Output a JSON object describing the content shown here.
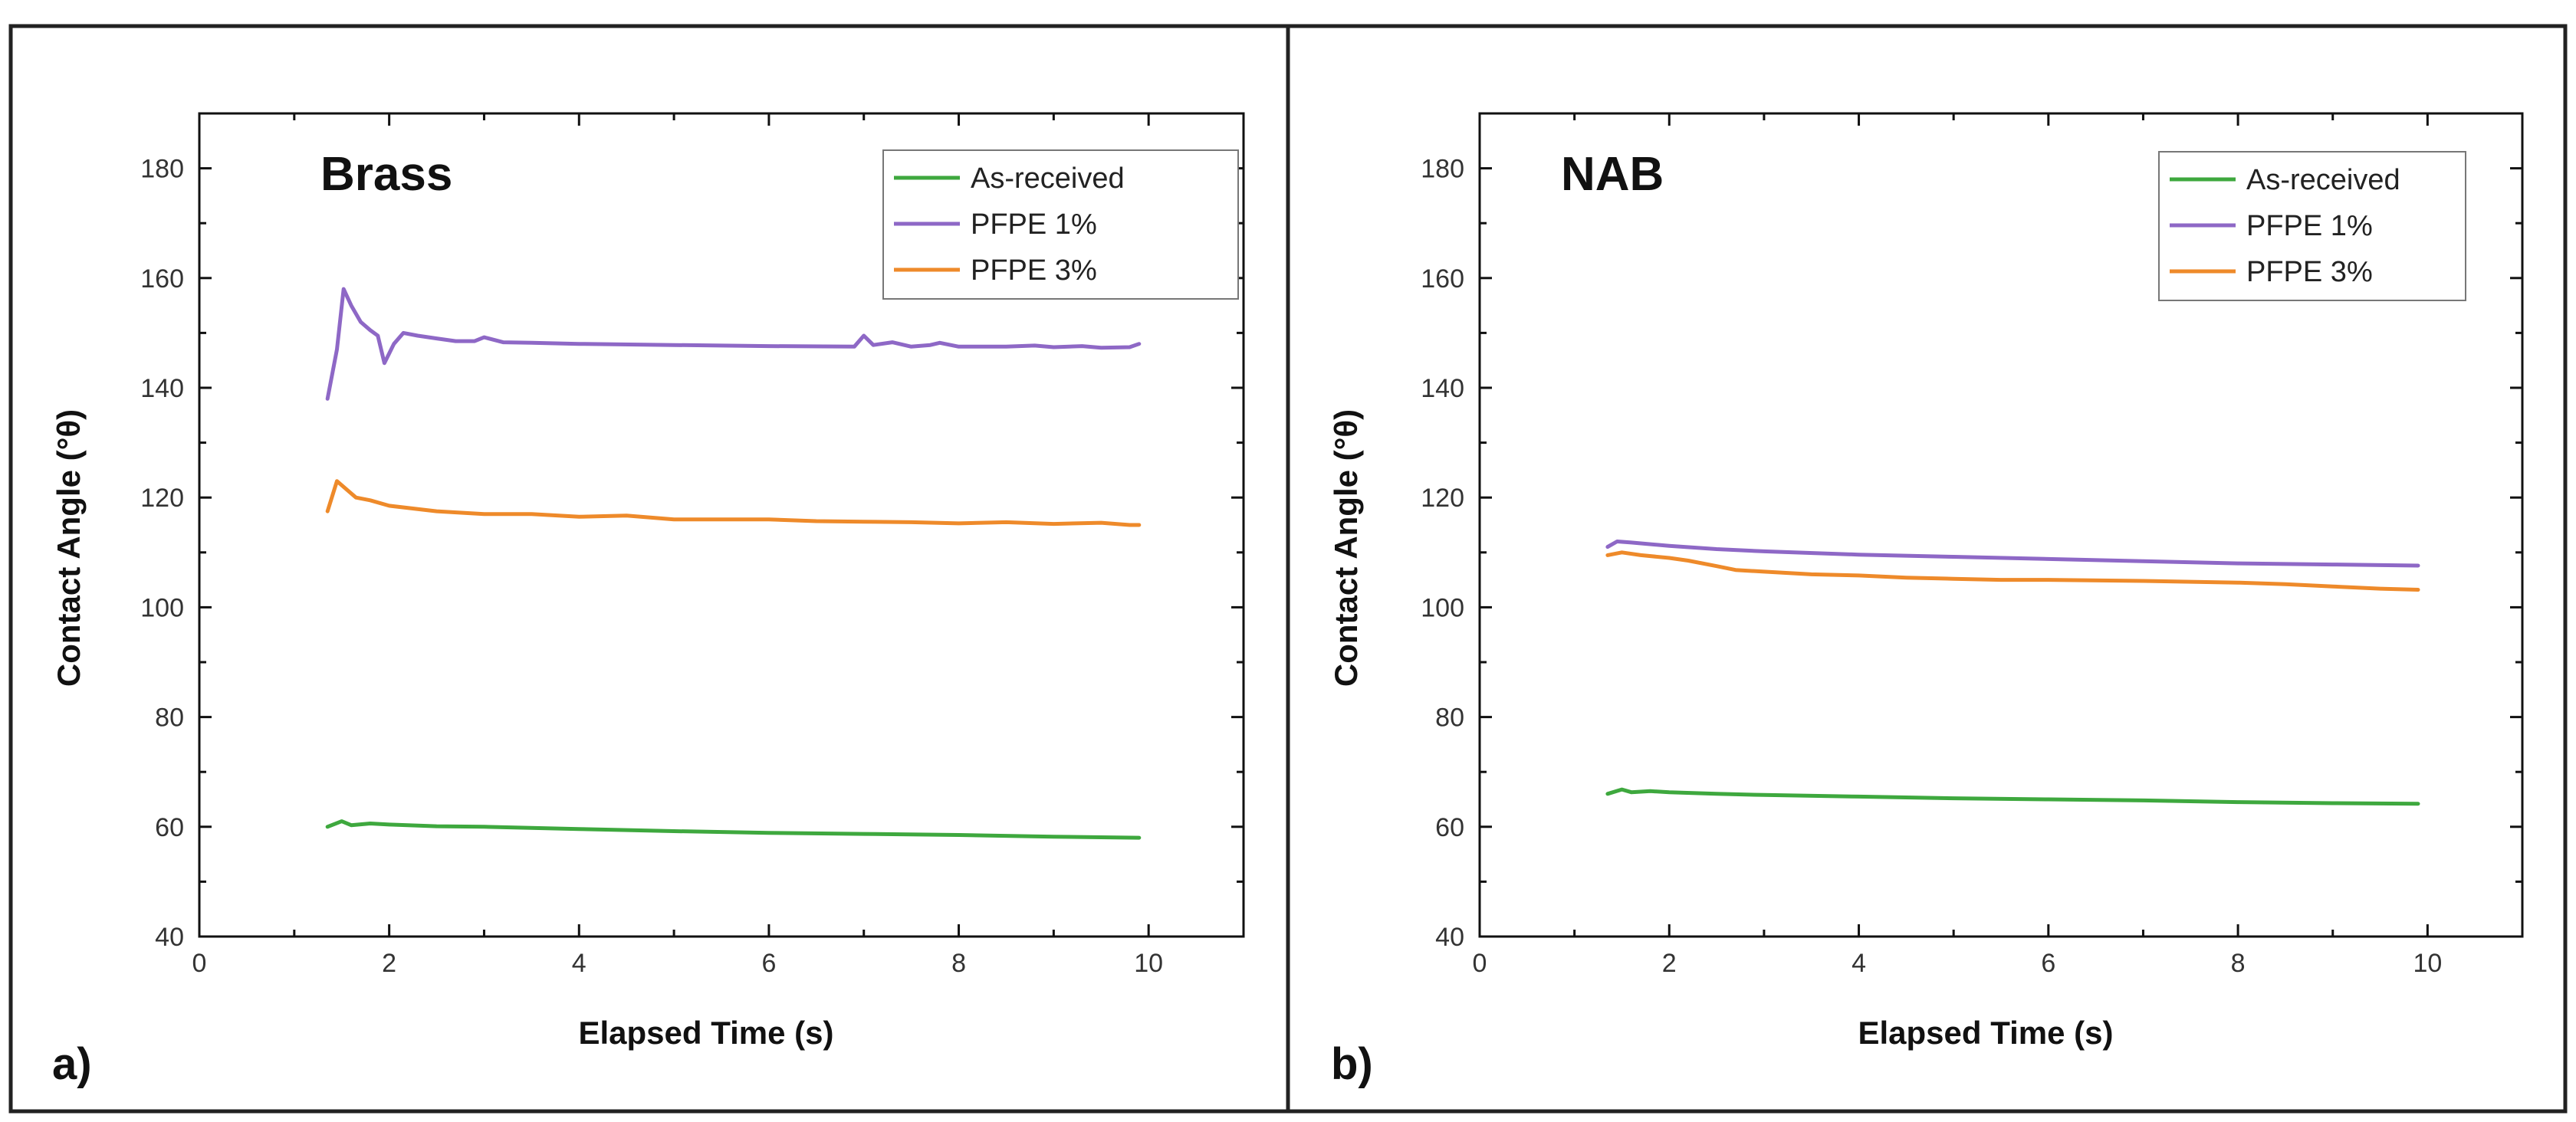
{
  "colors": {
    "as_received": "#3ea83e",
    "pfpe1": "#8e68c6",
    "pfpe3": "#ee8a2a"
  },
  "chart_data": [
    {
      "type": "line",
      "panel_label": "a)",
      "title": "Brass",
      "xlabel": "Elapsed Time (s)",
      "ylabel": "Contact Angle (°θ)",
      "xlim": [
        0,
        11
      ],
      "ylim": [
        40,
        190
      ],
      "xticks": [
        0,
        2,
        4,
        6,
        8,
        10
      ],
      "yticks": [
        40,
        60,
        80,
        100,
        120,
        140,
        160,
        180
      ],
      "legend_position": "top-right",
      "grid": false,
      "series": [
        {
          "name": "As-received",
          "color_key": "as_received",
          "points": [
            [
              1.35,
              60.0
            ],
            [
              1.5,
              61.0
            ],
            [
              1.6,
              60.3
            ],
            [
              1.8,
              60.6
            ],
            [
              2.0,
              60.4
            ],
            [
              2.5,
              60.1
            ],
            [
              3.0,
              60.0
            ],
            [
              4.0,
              59.6
            ],
            [
              5.0,
              59.2
            ],
            [
              6.0,
              58.9
            ],
            [
              7.0,
              58.7
            ],
            [
              8.0,
              58.5
            ],
            [
              9.0,
              58.2
            ],
            [
              9.9,
              58.0
            ]
          ]
        },
        {
          "name": "PFPE 1%",
          "color_key": "pfpe1",
          "points": [
            [
              1.35,
              138.0
            ],
            [
              1.45,
              147.0
            ],
            [
              1.52,
              158.0
            ],
            [
              1.6,
              155.0
            ],
            [
              1.7,
              152.0
            ],
            [
              1.8,
              150.5
            ],
            [
              1.88,
              149.5
            ],
            [
              1.95,
              144.5
            ],
            [
              2.05,
              148.0
            ],
            [
              2.15,
              150.0
            ],
            [
              2.3,
              149.5
            ],
            [
              2.5,
              149.0
            ],
            [
              2.7,
              148.5
            ],
            [
              2.9,
              148.5
            ],
            [
              3.0,
              149.2
            ],
            [
              3.2,
              148.3
            ],
            [
              3.5,
              148.2
            ],
            [
              4.0,
              148.0
            ],
            [
              5.0,
              147.8
            ],
            [
              6.0,
              147.6
            ],
            [
              6.9,
              147.5
            ],
            [
              7.0,
              149.5
            ],
            [
              7.1,
              147.8
            ],
            [
              7.3,
              148.3
            ],
            [
              7.5,
              147.5
            ],
            [
              7.7,
              147.8
            ],
            [
              7.8,
              148.2
            ],
            [
              8.0,
              147.5
            ],
            [
              8.5,
              147.5
            ],
            [
              8.8,
              147.7
            ],
            [
              9.0,
              147.4
            ],
            [
              9.3,
              147.6
            ],
            [
              9.5,
              147.3
            ],
            [
              9.8,
              147.4
            ],
            [
              9.9,
              148.0
            ]
          ]
        },
        {
          "name": "PFPE 3%",
          "color_key": "pfpe3",
          "points": [
            [
              1.35,
              117.5
            ],
            [
              1.45,
              123.0
            ],
            [
              1.55,
              121.5
            ],
            [
              1.65,
              120.0
            ],
            [
              1.8,
              119.5
            ],
            [
              2.0,
              118.5
            ],
            [
              2.5,
              117.5
            ],
            [
              3.0,
              117.0
            ],
            [
              3.5,
              117.0
            ],
            [
              4.0,
              116.5
            ],
            [
              4.5,
              116.7
            ],
            [
              5.0,
              116.0
            ],
            [
              5.5,
              116.0
            ],
            [
              6.0,
              116.0
            ],
            [
              6.5,
              115.7
            ],
            [
              7.0,
              115.6
            ],
            [
              7.5,
              115.5
            ],
            [
              8.0,
              115.3
            ],
            [
              8.5,
              115.5
            ],
            [
              9.0,
              115.2
            ],
            [
              9.5,
              115.4
            ],
            [
              9.8,
              115.0
            ],
            [
              9.9,
              115.0
            ]
          ]
        }
      ]
    },
    {
      "type": "line",
      "panel_label": "b)",
      "title": "NAB",
      "xlabel": "Elapsed Time (s)",
      "ylabel": "Contact Angle (°θ)",
      "xlim": [
        0,
        11
      ],
      "ylim": [
        40,
        190
      ],
      "xticks": [
        0,
        2,
        4,
        6,
        8,
        10
      ],
      "yticks": [
        40,
        60,
        80,
        100,
        120,
        140,
        160,
        180
      ],
      "legend_position": "top-right",
      "grid": false,
      "series": [
        {
          "name": "As-received",
          "color_key": "as_received",
          "points": [
            [
              1.35,
              66.0
            ],
            [
              1.5,
              66.8
            ],
            [
              1.6,
              66.3
            ],
            [
              1.8,
              66.5
            ],
            [
              2.0,
              66.3
            ],
            [
              2.5,
              66.0
            ],
            [
              3.0,
              65.8
            ],
            [
              4.0,
              65.5
            ],
            [
              5.0,
              65.2
            ],
            [
              6.0,
              65.0
            ],
            [
              7.0,
              64.8
            ],
            [
              8.0,
              64.5
            ],
            [
              9.0,
              64.3
            ],
            [
              9.9,
              64.2
            ]
          ]
        },
        {
          "name": "PFPE 1%",
          "color_key": "pfpe1",
          "points": [
            [
              1.35,
              111.0
            ],
            [
              1.45,
              112.0
            ],
            [
              1.6,
              111.8
            ],
            [
              2.0,
              111.2
            ],
            [
              2.5,
              110.6
            ],
            [
              3.0,
              110.2
            ],
            [
              4.0,
              109.6
            ],
            [
              5.0,
              109.2
            ],
            [
              6.0,
              108.8
            ],
            [
              7.0,
              108.4
            ],
            [
              8.0,
              108.0
            ],
            [
              9.0,
              107.8
            ],
            [
              9.9,
              107.6
            ]
          ]
        },
        {
          "name": "PFPE 3%",
          "color_key": "pfpe3",
          "points": [
            [
              1.35,
              109.5
            ],
            [
              1.5,
              110.0
            ],
            [
              1.7,
              109.5
            ],
            [
              2.0,
              109.0
            ],
            [
              2.2,
              108.5
            ],
            [
              2.5,
              107.5
            ],
            [
              2.7,
              106.8
            ],
            [
              3.0,
              106.5
            ],
            [
              3.5,
              106.0
            ],
            [
              4.0,
              105.8
            ],
            [
              4.5,
              105.4
            ],
            [
              5.0,
              105.2
            ],
            [
              5.5,
              105.0
            ],
            [
              6.0,
              105.0
            ],
            [
              7.0,
              104.8
            ],
            [
              8.0,
              104.5
            ],
            [
              8.5,
              104.2
            ],
            [
              9.0,
              103.8
            ],
            [
              9.5,
              103.4
            ],
            [
              9.9,
              103.2
            ]
          ]
        }
      ]
    }
  ]
}
